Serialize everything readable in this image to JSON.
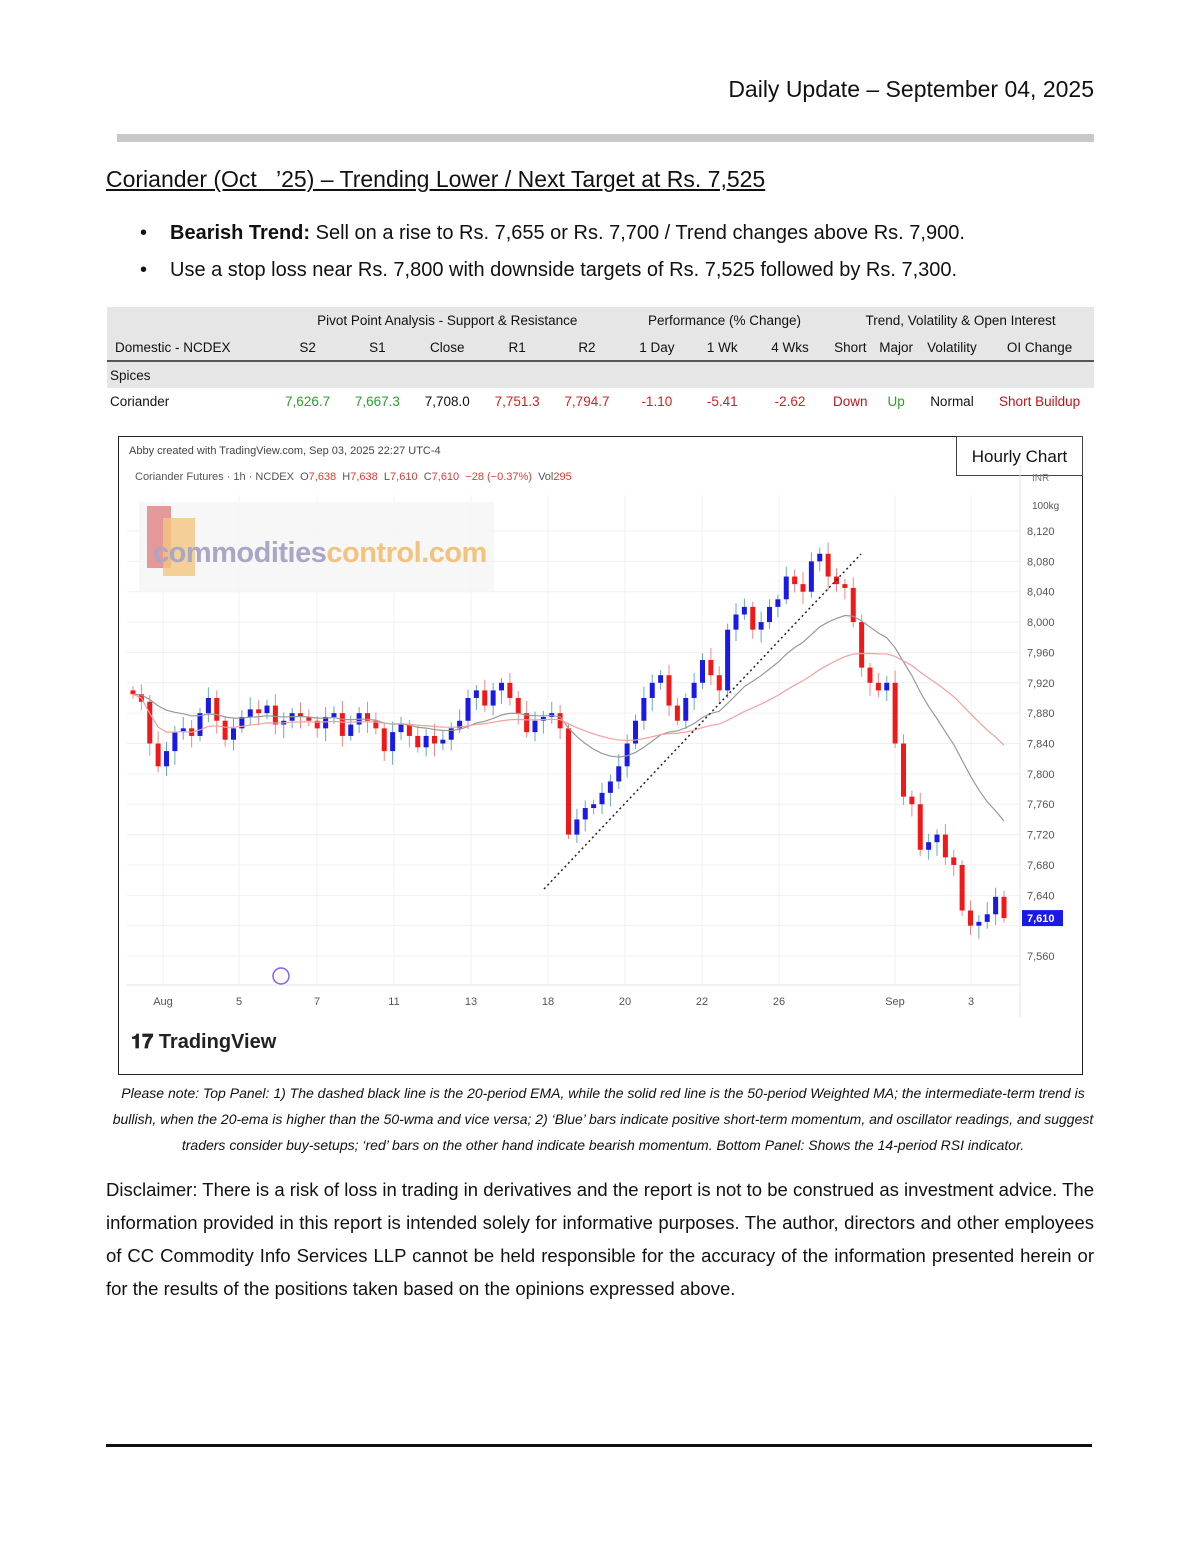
{
  "header": {
    "title": "Daily Update – September 04, 2025"
  },
  "report": {
    "title": "Coriander (Oct   ’25) – Trending Lower / Next Target at Rs. 7,525",
    "bullets": [
      {
        "bold": "Bearish Trend:",
        "text": " Sell on a rise to Rs. 7,655 or Rs. 7,700 / Trend changes above Rs. 7,900."
      },
      {
        "bold": "",
        "text": "Use a stop loss near Rs. 7,800 with downside targets of Rs. 7,525 followed by Rs. 7,300."
      }
    ]
  },
  "table": {
    "groups": [
      "Pivot Point Analysis - Support & Resistance",
      "Performance (% Change)",
      "Trend, Volatility & Open Interest"
    ],
    "columns": [
      "Domestic - NCDEX",
      "S2",
      "S1",
      "Close",
      "R1",
      "R2",
      "1 Day",
      "1 Wk",
      "4 Wks",
      "Short",
      "Major",
      "Volatility",
      "OI Change"
    ],
    "section": "Spices",
    "rows": [
      [
        "Coriander",
        "7,626.7",
        "7,667.3",
        "7,708.0",
        "7,751.3",
        "7,794.7",
        "-1.10",
        "-5.41",
        "-2.62",
        "Down",
        "Up",
        "Normal",
        "Short Buildup"
      ]
    ]
  },
  "chart": {
    "created": "Abby created with TradingView.com, Sep 03, 2025 22:27 UTC-4",
    "symbol": "Coriander Futures · 1h · NCDEX",
    "o_label": "O",
    "o": "7,638",
    "h_label": "H",
    "h": "7,638",
    "l_label": "L",
    "l": "7,610",
    "c_label": "C",
    "c": "7,610",
    "change": "−28 (−0.37%)",
    "vol_label": "Vol",
    "vol": "295",
    "badge": "Hourly Chart",
    "watermark_a": "commodities",
    "watermark_b": "control.com",
    "currency": "INR",
    "unit": "100kg",
    "last_price": "7,610",
    "tv_logo": "TradingView",
    "colors": {
      "up": "#1a1ae6",
      "down": "#f01818",
      "ema": "#999999",
      "wma": "#f4a0a0",
      "last": "#1a1ae6"
    }
  },
  "chart_data": {
    "type": "candlestick",
    "ylim": [
      7540,
      8160
    ],
    "y_ticks": [
      "8,120",
      "8,080",
      "8,040",
      "8,000",
      "7,960",
      "7,920",
      "7,880",
      "7,840",
      "7,800",
      "7,760",
      "7,720",
      "7,680",
      "7,640",
      "7,560"
    ],
    "x_ticks": [
      "Aug",
      "5",
      "7",
      "11",
      "13",
      "18",
      "20",
      "22",
      "26",
      "Sep",
      "3"
    ],
    "closes": [
      7905,
      7895,
      7840,
      7810,
      7830,
      7855,
      7860,
      7850,
      7880,
      7900,
      7870,
      7845,
      7860,
      7875,
      7885,
      7880,
      7890,
      7865,
      7870,
      7880,
      7875,
      7870,
      7860,
      7875,
      7880,
      7850,
      7865,
      7880,
      7870,
      7860,
      7830,
      7855,
      7865,
      7850,
      7835,
      7850,
      7840,
      7845,
      7860,
      7870,
      7900,
      7910,
      7890,
      7910,
      7920,
      7900,
      7880,
      7855,
      7870,
      7875,
      7880,
      7860,
      7720,
      7740,
      7755,
      7760,
      7775,
      7790,
      7810,
      7840,
      7870,
      7900,
      7920,
      7930,
      7890,
      7870,
      7900,
      7920,
      7950,
      7930,
      7910,
      7990,
      8010,
      8020,
      7990,
      8000,
      8020,
      8030,
      8060,
      8050,
      8040,
      8080,
      8090,
      8060,
      8050,
      8045,
      8000,
      7940,
      7920,
      7910,
      7920,
      7840,
      7770,
      7760,
      7700,
      7710,
      7720,
      7690,
      7680,
      7620,
      7600,
      7605,
      7615,
      7638,
      7610
    ],
    "overlays": [
      "20-period EMA",
      "50-period WMA"
    ]
  },
  "note": "Please note: Top Panel: 1) The dashed black line is the 20-period EMA, while the solid red line is the 50-period Weighted MA; the intermediate-term trend is bullish, when the 20-ema is higher than the 50-wma and vice versa; 2)  ‘Blue’  bars indicate positive short-term momentum, and oscillator readings, and suggest traders consider buy-setups;  ‘red’  bars on the other hand indicate bearish momentum. Bottom Panel: Shows the 14-period RSI indicator.",
  "disclaimer": "Disclaimer: There is a risk of loss in trading in derivatives and the report is not to be construed as investment advice. The information provided in this report is intended solely for informative purposes. The author, directors and other employees of CC Commodity Info Services LLP cannot be held responsible for the accuracy of the information presented herein or for the results of the positions taken based on the opinions expressed above."
}
